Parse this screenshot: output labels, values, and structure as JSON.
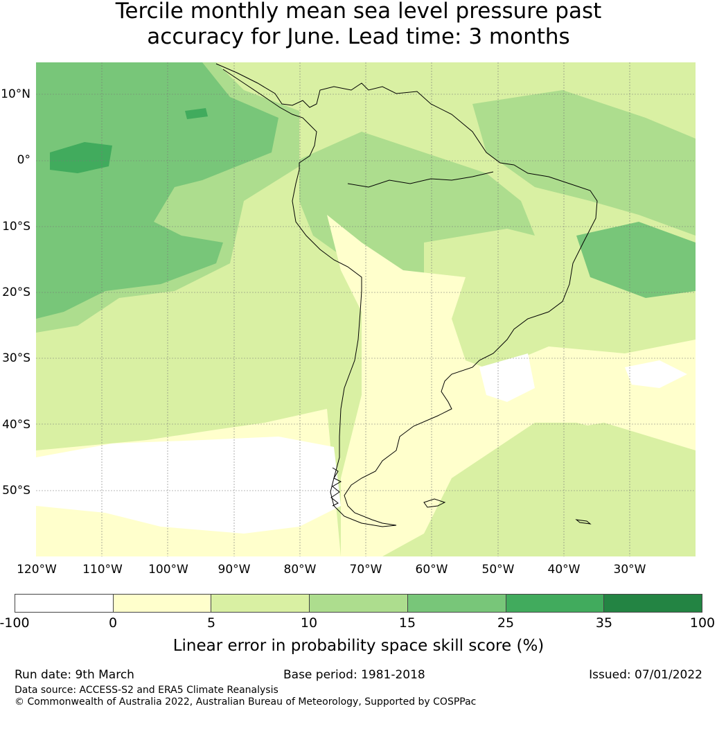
{
  "title_line1": "Tercile monthly mean sea level pressure past",
  "title_line2": "accuracy for June. Lead time: 3 months",
  "lat_labels": [
    "10°N",
    "0°",
    "10°S",
    "20°S",
    "30°S",
    "40°S",
    "50°S"
  ],
  "lon_labels": [
    "120°W",
    "110°W",
    "100°W",
    "90°W",
    "80°W",
    "70°W",
    "60°W",
    "50°W",
    "40°W",
    "30°W"
  ],
  "colorbar": {
    "label": "Linear error in probability space skill score (%)",
    "ticks": [
      "-100",
      "0",
      "5",
      "10",
      "15",
      "25",
      "35",
      "100"
    ],
    "colors": [
      "#ffffff",
      "#ffffcc",
      "#d9f0a3",
      "#addd8e",
      "#78c679",
      "#41ab5d",
      "#238443"
    ]
  },
  "footer": {
    "run_date": "Run date: 9th March",
    "base_period": "Base period: 1981-2018",
    "issued": "Issued: 07/01/2022",
    "data_source": "Data source: ACCESS-S2 and ERA5 Climate Reanalysis",
    "copyright": "© Commonwealth of Australia 2022, Australian Bureau of Meteorology, Supported by COSPPac"
  }
}
